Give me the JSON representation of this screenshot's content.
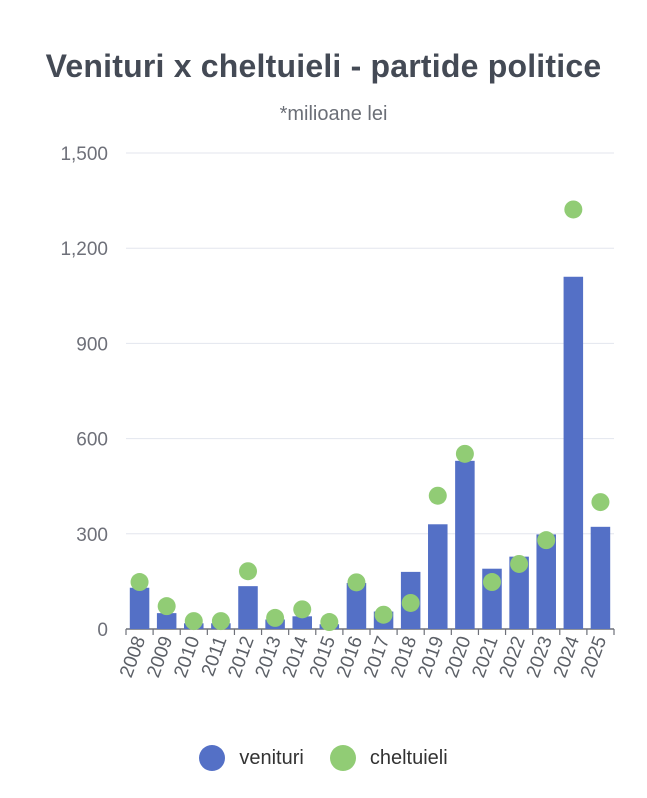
{
  "chart_data": {
    "type": "bar",
    "title": "Venituri x cheltuieli - partide politice",
    "subtitle": "*milioane lei",
    "categories": [
      "2008",
      "2009",
      "2010",
      "2011",
      "2012",
      "2013",
      "2014",
      "2015",
      "2016",
      "2017",
      "2018",
      "2019",
      "2020",
      "2021",
      "2022",
      "2023",
      "2024",
      "2025"
    ],
    "series": [
      {
        "name": "venituri",
        "type": "bar",
        "color": "#5470c6",
        "values": [
          130,
          50,
          18,
          18,
          135,
          30,
          40,
          15,
          145,
          55,
          180,
          330,
          530,
          190,
          228,
          298,
          1110,
          322
        ]
      },
      {
        "name": "cheltuieli",
        "type": "scatter",
        "color": "#91cc75",
        "values": [
          148,
          72,
          25,
          25,
          182,
          35,
          62,
          22,
          147,
          45,
          82,
          420,
          552,
          148,
          205,
          280,
          1322,
          400
        ]
      }
    ],
    "yticks": [
      "1,500",
      "1,200",
      "900",
      "600",
      "300",
      "0"
    ],
    "ylim": [
      0,
      1500
    ],
    "grid": true,
    "legend_position": "bottom"
  },
  "legend": {
    "venituri_label": "venituri",
    "cheltuieli_label": "cheltuieli"
  }
}
